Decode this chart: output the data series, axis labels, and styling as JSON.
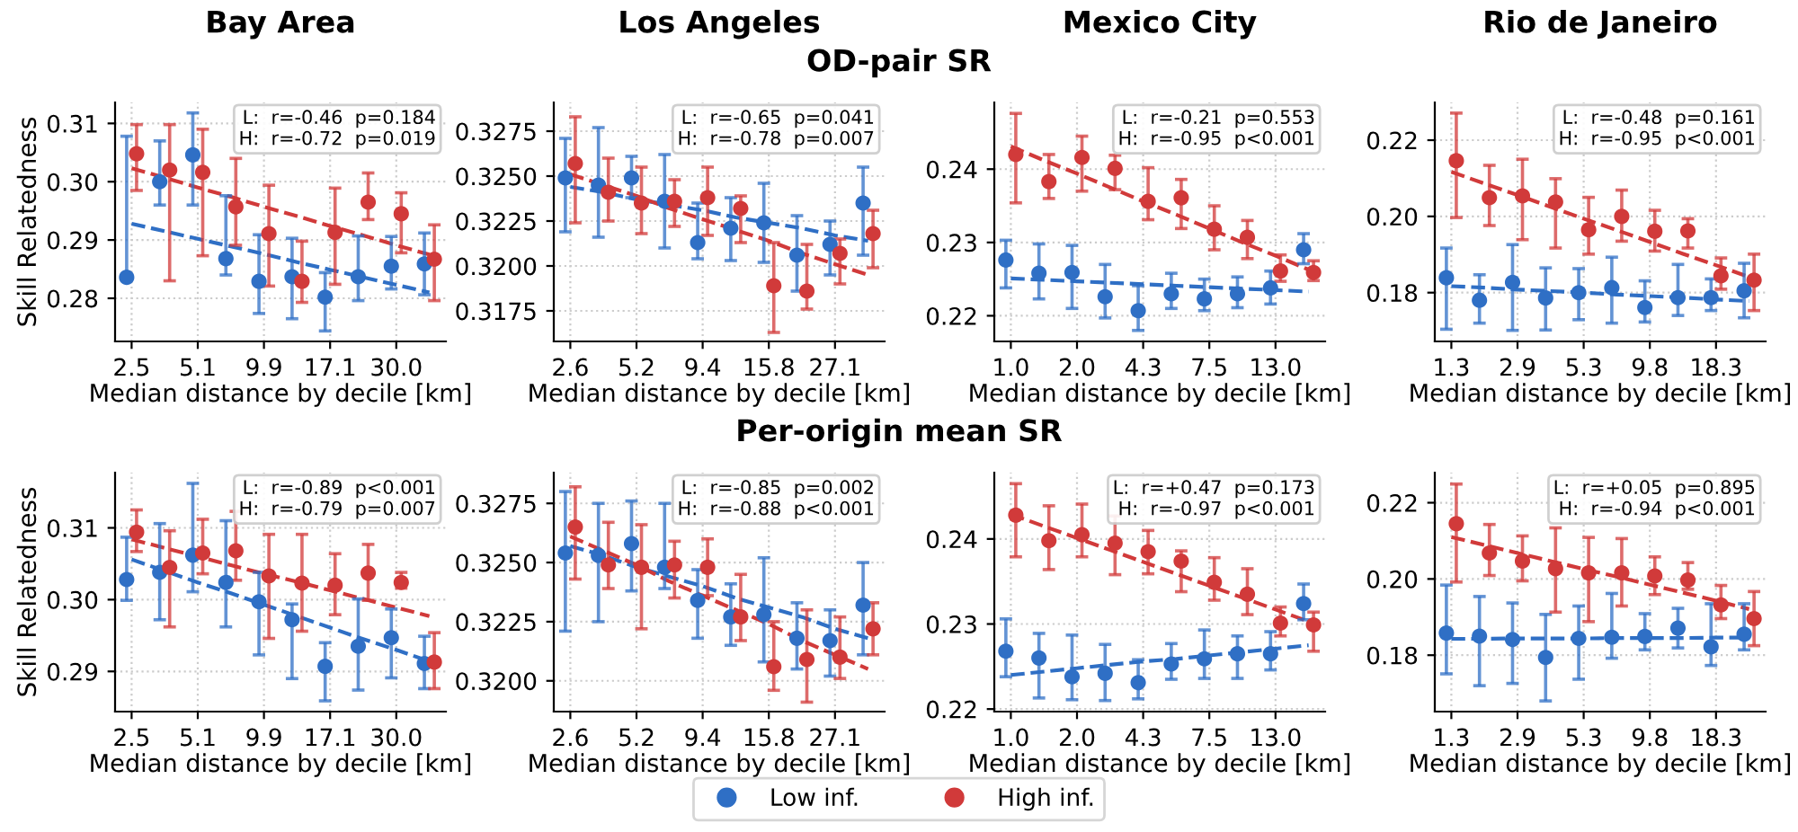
{
  "chart_data": [
    {
      "type": "other",
      "title": "OD-pair SR"
    },
    {
      "type": "scatter",
      "title": "Bay Area",
      "xlabel": "Median distance by decile [km]",
      "ylabel": "Skill Relatedness",
      "grid": true,
      "categories": [
        "2.5",
        null,
        "5.1",
        null,
        "9.9",
        null,
        "17.1",
        null,
        "30.0",
        null
      ],
      "ylim": [
        0.2726,
        0.3136
      ],
      "yticks": [
        {
          "value": 0.28,
          "label": "0.28"
        },
        {
          "value": 0.29,
          "label": "0.29"
        },
        {
          "value": 0.3,
          "label": "0.30"
        },
        {
          "value": 0.31,
          "label": "0.31"
        }
      ],
      "annotations": [
        "L:  r=-0.46  p=0.184",
        "H:  r=-0.72  p=0.019"
      ],
      "series": [
        {
          "type": "scatter",
          "color": "#2f6fc5",
          "marker": "circle",
          "values": [
            0.2836,
            0.3,
            0.3046,
            0.2868,
            0.2829,
            0.2837,
            0.2802,
            0.2837,
            0.2855,
            0.2859
          ],
          "errors": [
            [
              0.2834,
              0.3078
            ],
            [
              0.296,
              0.307
            ],
            [
              0.296,
              0.3118
            ],
            [
              0.284,
              0.2976
            ],
            [
              0.2774,
              0.2909
            ],
            [
              0.2765,
              0.2903
            ],
            [
              0.2744,
              0.2844
            ],
            [
              0.2796,
              0.2907
            ],
            [
              0.2816,
              0.2906
            ],
            [
              0.2806,
              0.2912
            ]
          ]
        },
        {
          "type": "scatter",
          "color": "#d13a3a",
          "marker": "circle",
          "values": [
            0.3048,
            0.302,
            0.3016,
            0.2957,
            0.2911,
            0.2829,
            0.2913,
            0.2965,
            0.2945,
            0.2867
          ],
          "errors": [
            [
              0.2985,
              0.3098
            ],
            [
              0.283,
              0.3098
            ],
            [
              0.2873,
              0.309
            ],
            [
              0.2891,
              0.304
            ],
            [
              0.2821,
              0.2994
            ],
            [
              0.2793,
              0.2898
            ],
            [
              0.2824,
              0.2989
            ],
            [
              0.2935,
              0.3015
            ],
            [
              0.2878,
              0.2981
            ],
            [
              0.2796,
              0.2926
            ]
          ]
        },
        {
          "type": "line",
          "line_style": "dashed",
          "color": "#2f6fc5",
          "values": [
            0.2928,
            0.2915,
            0.2902,
            0.2889,
            0.2876,
            0.2862,
            0.2849,
            0.2836,
            0.2823,
            0.281
          ]
        },
        {
          "type": "line",
          "line_style": "dashed",
          "color": "#d13a3a",
          "values": [
            0.3023,
            0.3007,
            0.299,
            0.2974,
            0.2957,
            0.2941,
            0.2924,
            0.2908,
            0.2891,
            0.2875
          ]
        }
      ]
    },
    {
      "type": "scatter",
      "title": "Los Angeles",
      "xlabel": "Median distance by decile [km]",
      "grid": true,
      "categories": [
        "2.6",
        null,
        "5.2",
        null,
        "9.4",
        null,
        "15.8",
        null,
        "27.1",
        null
      ],
      "ylim": [
        0.3158,
        0.3291
      ],
      "yticks": [
        {
          "value": 0.3175,
          "label": "0.3175"
        },
        {
          "value": 0.32,
          "label": "0.3200"
        },
        {
          "value": 0.3225,
          "label": "0.3225"
        },
        {
          "value": 0.325,
          "label": "0.3250"
        },
        {
          "value": 0.3275,
          "label": "0.3275"
        }
      ],
      "annotations": [
        "L:  r=-0.65  p=0.041",
        "H:  r=-0.78  p=0.007"
      ],
      "series": [
        {
          "type": "scatter",
          "color": "#2f6fc5",
          "marker": "circle",
          "values": [
            0.3249,
            0.3245,
            0.3249,
            0.3236,
            0.3213,
            0.3221,
            0.3224,
            0.3206,
            0.3212,
            0.3235
          ],
          "errors": [
            [
              0.3219,
              0.3271
            ],
            [
              0.3216,
              0.3277
            ],
            [
              0.3238,
              0.3261
            ],
            [
              0.321,
              0.3262
            ],
            [
              0.3204,
              0.3235
            ],
            [
              0.3203,
              0.3238
            ],
            [
              0.3202,
              0.3246
            ],
            [
              0.3186,
              0.3228
            ],
            [
              0.3195,
              0.3225
            ],
            [
              0.3206,
              0.3255
            ]
          ]
        },
        {
          "type": "scatter",
          "color": "#d13a3a",
          "marker": "circle",
          "values": [
            0.3257,
            0.3241,
            0.3235,
            0.3236,
            0.3238,
            0.3232,
            0.3189,
            0.3186,
            0.3207,
            0.3218
          ],
          "errors": [
            [
              0.3224,
              0.3283
            ],
            [
              0.3225,
              0.326
            ],
            [
              0.3218,
              0.3255
            ],
            [
              0.3222,
              0.3248
            ],
            [
              0.3217,
              0.3255
            ],
            [
              0.3213,
              0.3239
            ],
            [
              0.3163,
              0.3213
            ],
            [
              0.3176,
              0.3212
            ],
            [
              0.319,
              0.3215
            ],
            [
              0.3199,
              0.3231
            ]
          ]
        },
        {
          "type": "line",
          "line_style": "dashed",
          "color": "#2f6fc5",
          "values": [
            0.3244,
            0.3241,
            0.3237,
            0.3234,
            0.3231,
            0.3227,
            0.3224,
            0.3221,
            0.3217,
            0.3214
          ]
        },
        {
          "type": "line",
          "line_style": "dashed",
          "color": "#d13a3a",
          "values": [
            0.3251,
            0.3245,
            0.3239,
            0.3232,
            0.3226,
            0.322,
            0.3214,
            0.3207,
            0.3201,
            0.3195
          ]
        }
      ]
    },
    {
      "type": "scatter",
      "title": "Mexico City",
      "xlabel": "Median distance by decile [km]",
      "grid": true,
      "categories": [
        "1.0",
        null,
        "2.0",
        null,
        "4.3",
        null,
        "7.5",
        null,
        "13.0",
        null
      ],
      "ylim": [
        0.2165,
        0.2491
      ],
      "yticks": [
        {
          "value": 0.22,
          "label": "0.22"
        },
        {
          "value": 0.23,
          "label": "0.23"
        },
        {
          "value": 0.24,
          "label": "0.24"
        }
      ],
      "annotations": [
        "L:  r=-0.21  p=0.553",
        "H:  r=-0.95  p<0.001"
      ],
      "series": [
        {
          "type": "scatter",
          "color": "#2f6fc5",
          "marker": "circle",
          "values": [
            0.2276,
            0.2258,
            0.2259,
            0.2226,
            0.2207,
            0.223,
            0.2223,
            0.223,
            0.2238,
            0.229
          ],
          "errors": [
            [
              0.2238,
              0.2303
            ],
            [
              0.2223,
              0.2298
            ],
            [
              0.221,
              0.2296
            ],
            [
              0.2197,
              0.227
            ],
            [
              0.218,
              0.2241
            ],
            [
              0.221,
              0.2258
            ],
            [
              0.2207,
              0.225
            ],
            [
              0.2211,
              0.2253
            ],
            [
              0.2216,
              0.2261
            ],
            [
              0.2271,
              0.2312
            ]
          ]
        },
        {
          "type": "scatter",
          "color": "#d13a3a",
          "marker": "circle",
          "values": [
            0.242,
            0.2383,
            0.2416,
            0.2401,
            0.2356,
            0.2361,
            0.2318,
            0.2307,
            0.2261,
            0.2259
          ],
          "errors": [
            [
              0.2354,
              0.2476
            ],
            [
              0.236,
              0.242
            ],
            [
              0.237,
              0.2445
            ],
            [
              0.2372,
              0.2419
            ],
            [
              0.2331,
              0.2402
            ],
            [
              0.2319,
              0.2386
            ],
            [
              0.229,
              0.235
            ],
            [
              0.2278,
              0.233
            ],
            [
              0.2247,
              0.2283
            ],
            [
              0.2248,
              0.2275
            ]
          ]
        },
        {
          "type": "line",
          "line_style": "dashed",
          "color": "#2f6fc5",
          "values": [
            0.2251,
            0.2249,
            0.2247,
            0.2245,
            0.2243,
            0.2241,
            0.2239,
            0.2237,
            0.2235,
            0.2233
          ]
        },
        {
          "type": "line",
          "line_style": "dashed",
          "color": "#d13a3a",
          "values": [
            0.2431,
            0.2412,
            0.2394,
            0.2375,
            0.2356,
            0.2338,
            0.2319,
            0.23,
            0.2282,
            0.2263
          ]
        }
      ]
    },
    {
      "type": "scatter",
      "title": "Rio de Janeiro",
      "xlabel": "Median distance by decile [km]",
      "grid": true,
      "categories": [
        "1.3",
        null,
        "2.9",
        null,
        "5.3",
        null,
        "9.8",
        null,
        "18.3",
        null
      ],
      "ylim": [
        0.1672,
        0.2299
      ],
      "yticks": [
        {
          "value": 0.18,
          "label": "0.18"
        },
        {
          "value": 0.2,
          "label": "0.20"
        },
        {
          "value": 0.22,
          "label": "0.22"
        }
      ],
      "annotations": [
        "L:  r=-0.48  p=0.161",
        "H:  r=-0.95  p<0.001"
      ],
      "series": [
        {
          "type": "scatter",
          "color": "#2f6fc5",
          "marker": "circle",
          "values": [
            0.1839,
            0.178,
            0.1827,
            0.1786,
            0.18,
            0.1813,
            0.1761,
            0.1787,
            0.1787,
            0.1805
          ],
          "errors": [
            [
              0.1704,
              0.1917
            ],
            [
              0.172,
              0.1847
            ],
            [
              0.1701,
              0.1926
            ],
            [
              0.1702,
              0.1865
            ],
            [
              0.1729,
              0.1863
            ],
            [
              0.172,
              0.1893
            ],
            [
              0.1723,
              0.1831
            ],
            [
              0.174,
              0.1874
            ],
            [
              0.1753,
              0.1836
            ],
            [
              0.1734,
              0.1877
            ]
          ]
        },
        {
          "type": "scatter",
          "color": "#d13a3a",
          "marker": "circle",
          "values": [
            0.2146,
            0.2049,
            0.2054,
            0.2038,
            0.1965,
            0.2,
            0.1961,
            0.1962,
            0.1844,
            0.1833
          ],
          "errors": [
            [
              0.1997,
              0.2271
            ],
            [
              0.1976,
              0.2134
            ],
            [
              0.1939,
              0.215
            ],
            [
              0.1917,
              0.2099
            ],
            [
              0.1901,
              0.205
            ],
            [
              0.1935,
              0.2069
            ],
            [
              0.1909,
              0.2016
            ],
            [
              0.1917,
              0.1994
            ],
            [
              0.1809,
              0.1891
            ],
            [
              0.1753,
              0.1901
            ]
          ]
        },
        {
          "type": "line",
          "line_style": "dashed",
          "color": "#2f6fc5",
          "values": [
            0.1817,
            0.1813,
            0.1808,
            0.1804,
            0.18,
            0.1795,
            0.1791,
            0.1787,
            0.1782,
            0.1778
          ]
        },
        {
          "type": "line",
          "line_style": "dashed",
          "color": "#d13a3a",
          "values": [
            0.2117,
            0.2086,
            0.2056,
            0.2025,
            0.1994,
            0.1964,
            0.1933,
            0.1902,
            0.1872,
            0.1841
          ]
        }
      ]
    },
    {
      "type": "other",
      "title": "Per-origin mean SR"
    },
    {
      "type": "scatter",
      "xlabel": "Median distance by decile [km]",
      "ylabel": "Skill Relatedness",
      "grid": true,
      "categories": [
        "2.5",
        null,
        "5.1",
        null,
        "9.9",
        null,
        "17.1",
        null,
        "30.0",
        null
      ],
      "ylim": [
        0.2844,
        0.3177
      ],
      "yticks": [
        {
          "value": 0.29,
          "label": "0.29"
        },
        {
          "value": 0.3,
          "label": "0.30"
        },
        {
          "value": 0.31,
          "label": "0.31"
        }
      ],
      "annotations": [
        "L:  r=-0.89  p<0.001",
        "H:  r=-0.79  p=0.007"
      ],
      "series": [
        {
          "type": "scatter",
          "color": "#2f6fc5",
          "marker": "circle",
          "values": [
            0.3028,
            0.3038,
            0.3062,
            0.3024,
            0.2997,
            0.2972,
            0.2907,
            0.2935,
            0.2947,
            0.2911
          ],
          "errors": [
            [
              0.2999,
              0.3087
            ],
            [
              0.2972,
              0.3106
            ],
            [
              0.3011,
              0.3162
            ],
            [
              0.2962,
              0.311
            ],
            [
              0.2923,
              0.3038
            ],
            [
              0.289,
              0.2994
            ],
            [
              0.2859,
              0.294
            ],
            [
              0.2874,
              0.3001
            ],
            [
              0.2891,
              0.2987
            ],
            [
              0.2876,
              0.2949
            ]
          ]
        },
        {
          "type": "scatter",
          "color": "#d13a3a",
          "marker": "circle",
          "values": [
            0.3094,
            0.3045,
            0.3065,
            0.3068,
            0.3033,
            0.3023,
            0.302,
            0.3037,
            0.3024,
            0.2913
          ],
          "errors": [
            [
              0.3067,
              0.3125
            ],
            [
              0.2962,
              0.3096
            ],
            [
              0.3036,
              0.3112
            ],
            [
              0.3027,
              0.3123
            ],
            [
              0.2946,
              0.3091
            ],
            [
              0.2956,
              0.3091
            ],
            [
              0.2979,
              0.3064
            ],
            [
              0.2999,
              0.3077
            ],
            [
              0.3016,
              0.3038
            ],
            [
              0.2876,
              0.2954
            ]
          ]
        },
        {
          "type": "line",
          "line_style": "dashed",
          "color": "#2f6fc5",
          "values": [
            0.3056,
            0.304,
            0.3024,
            0.3009,
            0.2993,
            0.2977,
            0.2961,
            0.2945,
            0.293,
            0.2914
          ]
        },
        {
          "type": "line",
          "line_style": "dashed",
          "color": "#d13a3a",
          "values": [
            0.3084,
            0.3072,
            0.306,
            0.3048,
            0.3036,
            0.3025,
            0.3013,
            0.3001,
            0.2989,
            0.2977
          ]
        }
      ]
    },
    {
      "type": "scatter",
      "xlabel": "Median distance by decile [km]",
      "grid": true,
      "legend": "bottom",
      "categories": [
        "2.6",
        null,
        "5.2",
        null,
        "9.4",
        null,
        "15.8",
        null,
        "27.1",
        null
      ],
      "ylim": [
        0.3187,
        0.3288
      ],
      "yticks": [
        {
          "value": 0.32,
          "label": "0.3200"
        },
        {
          "value": 0.3225,
          "label": "0.3225"
        },
        {
          "value": 0.325,
          "label": "0.3250"
        },
        {
          "value": 0.3275,
          "label": "0.3275"
        }
      ],
      "annotations": [
        "L:  r=-0.85  p=0.002",
        "H:  r=-0.88  p<0.001"
      ],
      "series": [
        {
          "type": "scatter",
          "name": "Low inf.",
          "color": "#2f6fc5",
          "marker": "circle",
          "values": [
            0.3254,
            0.3253,
            0.3258,
            0.3248,
            0.3234,
            0.3227,
            0.3228,
            0.3218,
            0.3217,
            0.3232
          ],
          "errors": [
            [
              0.3221,
              0.328
            ],
            [
              0.3225,
              0.3275
            ],
            [
              0.3238,
              0.3276
            ],
            [
              0.3239,
              0.3275
            ],
            [
              0.3218,
              0.3247
            ],
            [
              0.3215,
              0.3241
            ],
            [
              0.3208,
              0.3252
            ],
            [
              0.3205,
              0.3233
            ],
            [
              0.3202,
              0.323
            ],
            [
              0.3211,
              0.325
            ]
          ]
        },
        {
          "type": "scatter",
          "name": "High inf.",
          "color": "#d13a3a",
          "marker": "circle",
          "values": [
            0.3265,
            0.3249,
            0.3248,
            0.3249,
            0.3248,
            0.3227,
            0.3206,
            0.3209,
            0.321,
            0.3222
          ],
          "errors": [
            [
              0.3243,
              0.3282
            ],
            [
              0.3239,
              0.3267
            ],
            [
              0.3222,
              0.3266
            ],
            [
              0.3235,
              0.3259
            ],
            [
              0.3236,
              0.326
            ],
            [
              0.3217,
              0.3245
            ],
            [
              0.3196,
              0.3225
            ],
            [
              0.3191,
              0.323
            ],
            [
              0.3201,
              0.3227
            ],
            [
              0.3211,
              0.3233
            ]
          ]
        },
        {
          "type": "line",
          "line_style": "dashed",
          "color": "#2f6fc5",
          "values": [
            0.3257,
            0.3253,
            0.3248,
            0.3244,
            0.324,
            0.3235,
            0.3231,
            0.3227,
            0.3222,
            0.3218
          ]
        },
        {
          "type": "line",
          "line_style": "dashed",
          "color": "#d13a3a",
          "values": [
            0.3261,
            0.3255,
            0.3249,
            0.3242,
            0.3236,
            0.323,
            0.3224,
            0.3217,
            0.3211,
            0.3205
          ]
        }
      ]
    },
    {
      "type": "scatter",
      "xlabel": "Median distance by decile [km]",
      "grid": true,
      "categories": [
        "1.0",
        null,
        "2.0",
        null,
        "4.3",
        null,
        "7.5",
        null,
        "13.0",
        null
      ],
      "ylim": [
        0.2197,
        0.2478
      ],
      "yticks": [
        {
          "value": 0.22,
          "label": "0.22"
        },
        {
          "value": 0.23,
          "label": "0.23"
        },
        {
          "value": 0.24,
          "label": "0.24"
        }
      ],
      "annotations": [
        "L:  r=+0.47  p=0.173",
        "H:  r=-0.97  p<0.001"
      ],
      "series": [
        {
          "type": "scatter",
          "color": "#2f6fc5",
          "marker": "circle",
          "values": [
            0.2268,
            0.226,
            0.2238,
            0.2242,
            0.2231,
            0.2253,
            0.2259,
            0.2265,
            0.2265,
            0.2324
          ],
          "errors": [
            [
              0.2238,
              0.2306
            ],
            [
              0.2213,
              0.2289
            ],
            [
              0.2211,
              0.2287
            ],
            [
              0.221,
              0.2276
            ],
            [
              0.2212,
              0.2258
            ],
            [
              0.2235,
              0.2277
            ],
            [
              0.2236,
              0.2293
            ],
            [
              0.2236,
              0.2286
            ],
            [
              0.2246,
              0.2291
            ],
            [
              0.2305,
              0.2347
            ]
          ]
        },
        {
          "type": "scatter",
          "color": "#d13a3a",
          "marker": "circle",
          "values": [
            0.2428,
            0.2398,
            0.2405,
            0.2395,
            0.2385,
            0.2374,
            0.2349,
            0.2335,
            0.2301,
            0.2299
          ],
          "errors": [
            [
              0.2379,
              0.2465
            ],
            [
              0.2364,
              0.2439
            ],
            [
              0.2379,
              0.2441
            ],
            [
              0.2358,
              0.2427
            ],
            [
              0.2359,
              0.241
            ],
            [
              0.2338,
              0.2386
            ],
            [
              0.2328,
              0.2378
            ],
            [
              0.2311,
              0.2365
            ],
            [
              0.2286,
              0.232
            ],
            [
              0.2268,
              0.2314
            ]
          ]
        },
        {
          "type": "line",
          "line_style": "dashed",
          "color": "#2f6fc5",
          "values": [
            0.224,
            0.2244,
            0.2248,
            0.2252,
            0.2256,
            0.2259,
            0.2263,
            0.2267,
            0.2271,
            0.2275
          ]
        },
        {
          "type": "line",
          "line_style": "dashed",
          "color": "#d13a3a",
          "values": [
            0.2429,
            0.2415,
            0.2401,
            0.2387,
            0.2373,
            0.2359,
            0.2345,
            0.2331,
            0.2317,
            0.2303
          ]
        }
      ]
    },
    {
      "type": "scatter",
      "xlabel": "Median distance by decile [km]",
      "grid": true,
      "categories": [
        "1.3",
        null,
        "2.9",
        null,
        "5.3",
        null,
        "9.8",
        null,
        "18.3",
        null
      ],
      "ylim": [
        0.1652,
        0.2279
      ],
      "yticks": [
        {
          "value": 0.18,
          "label": "0.18"
        },
        {
          "value": 0.2,
          "label": "0.20"
        },
        {
          "value": 0.22,
          "label": "0.22"
        }
      ],
      "annotations": [
        "L:  r=+0.05  p=0.895",
        "H:  r=-0.94  p<0.001"
      ],
      "series": [
        {
          "type": "scatter",
          "color": "#2f6fc5",
          "marker": "circle",
          "values": [
            0.1858,
            0.185,
            0.1841,
            0.1794,
            0.1844,
            0.1847,
            0.1849,
            0.1871,
            0.1822,
            0.1855
          ],
          "errors": [
            [
              0.1751,
              0.1984
            ],
            [
              0.172,
              0.1954
            ],
            [
              0.1726,
              0.1937
            ],
            [
              0.168,
              0.1907
            ],
            [
              0.1737,
              0.1929
            ],
            [
              0.1792,
              0.1962
            ],
            [
              0.1814,
              0.1909
            ],
            [
              0.1819,
              0.1923
            ],
            [
              0.1773,
              0.1935
            ],
            [
              0.1814,
              0.1935
            ]
          ]
        },
        {
          "type": "scatter",
          "color": "#d13a3a",
          "marker": "circle",
          "values": [
            0.2145,
            0.2068,
            0.2047,
            0.2027,
            0.2016,
            0.2016,
            0.2008,
            0.1997,
            0.1932,
            0.1896
          ],
          "errors": [
            [
              0.1992,
              0.2249
            ],
            [
              0.2009,
              0.2143
            ],
            [
              0.1995,
              0.2113
            ],
            [
              0.1913,
              0.2134
            ],
            [
              0.1888,
              0.2109
            ],
            [
              0.1929,
              0.2106
            ],
            [
              0.1959,
              0.2058
            ],
            [
              0.1973,
              0.2043
            ],
            [
              0.1896,
              0.1983
            ],
            [
              0.1825,
              0.1967
            ]
          ]
        },
        {
          "type": "line",
          "line_style": "dashed",
          "color": "#2f6fc5",
          "values": [
            0.1843,
            0.1843,
            0.1844,
            0.1844,
            0.1844,
            0.1845,
            0.1845,
            0.1845,
            0.1846,
            0.1846
          ]
        },
        {
          "type": "line",
          "line_style": "dashed",
          "color": "#d13a3a",
          "values": [
            0.211,
            0.2089,
            0.2068,
            0.2047,
            0.2026,
            0.2006,
            0.1985,
            0.1964,
            0.1943,
            0.1921
          ]
        }
      ]
    }
  ]
}
